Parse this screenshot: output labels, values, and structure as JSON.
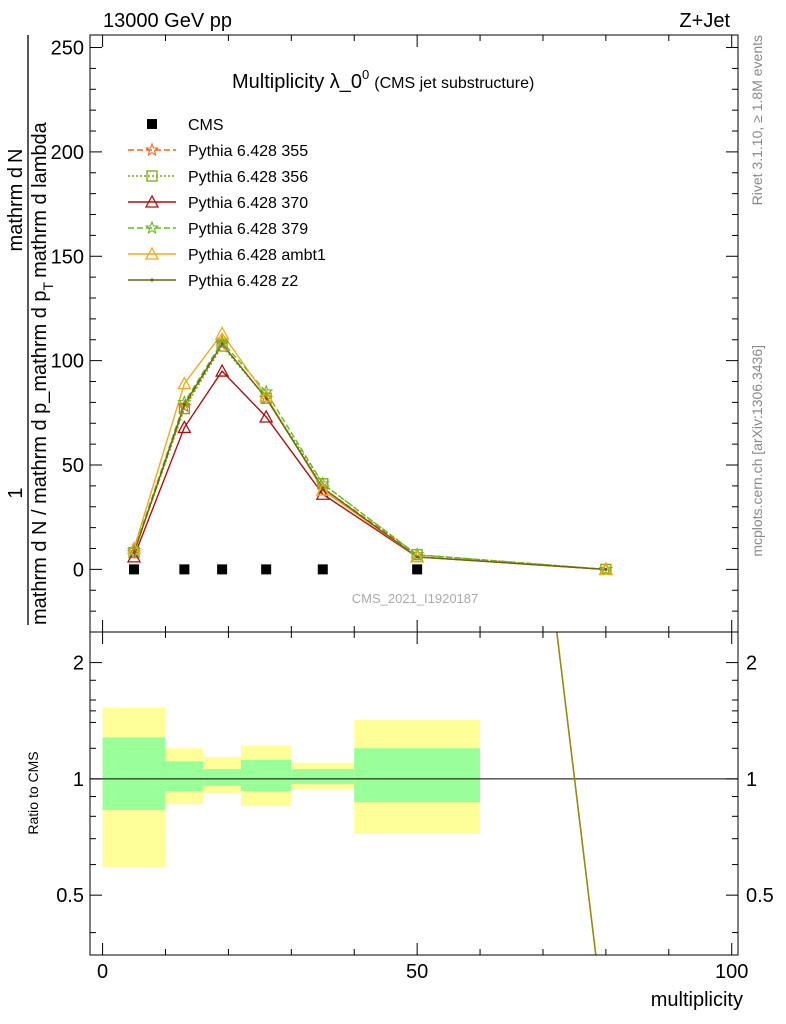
{
  "header": {
    "left": "13000 GeV pp",
    "right": "Z+Jet"
  },
  "side_labels": {
    "rivet": "Rivet 3.1.10, ≥ 1.8M events",
    "mcplots": "mcplots.cern.ch [arXiv:1306.3436]"
  },
  "chart_data": [
    {
      "type": "line",
      "title_main": "Multiplicity λ_0",
      "title_sup": "0",
      "title_sub": "(CMS jet substructure)",
      "watermark": "CMS_2021_I1920187",
      "ylabel_num": "1",
      "ylabel_den": "mathrm d N / mathrm d p_mathrm d p",
      "ylabel_den_sub": "T",
      "ylabel_den_tail": "mathrm d lambda",
      "ylabel_num_tail": "mathrm d",
      "ylabel_num_end": "N",
      "xlim": [
        -2,
        101
      ],
      "ylim": [
        -30,
        256
      ],
      "yticks": [
        0,
        50,
        100,
        150,
        200,
        250
      ],
      "legend_position": "top-left",
      "series": [
        {
          "name": "CMS",
          "color": "#000000",
          "marker": "square",
          "dash": "none",
          "x": [
            5,
            13,
            19,
            26,
            35,
            50
          ],
          "y": [
            0,
            0,
            0,
            0,
            0,
            0
          ]
        },
        {
          "name": "Pythia 6.428 355",
          "color": "#ee6622",
          "marker": "star",
          "dash": "6,3",
          "x": [
            5,
            13,
            19,
            26,
            35,
            50,
            80
          ],
          "y": [
            8,
            78,
            108,
            82,
            39,
            7,
            0
          ]
        },
        {
          "name": "Pythia 6.428 356",
          "color": "#77aa11",
          "marker": "square-open",
          "dash": "2,2",
          "x": [
            5,
            13,
            19,
            26,
            35,
            50,
            80
          ],
          "y": [
            8,
            77,
            107,
            82,
            41,
            7,
            0
          ]
        },
        {
          "name": "Pythia 6.428 370",
          "color": "#aa1111",
          "marker": "triangle-open",
          "dash": "none",
          "x": [
            5,
            13,
            19,
            26,
            35,
            50,
            80
          ],
          "y": [
            6,
            68,
            95,
            73,
            36,
            6,
            0
          ]
        },
        {
          "name": "Pythia 6.428 379",
          "color": "#66bb22",
          "marker": "star",
          "dash": "6,3",
          "x": [
            5,
            13,
            19,
            26,
            35,
            50,
            80
          ],
          "y": [
            9,
            80,
            109,
            85,
            41,
            7,
            0
          ]
        },
        {
          "name": "Pythia 6.428 ambt1",
          "color": "#eeaa22",
          "marker": "triangle-open",
          "dash": "none",
          "x": [
            5,
            13,
            19,
            26,
            35,
            50,
            80
          ],
          "y": [
            10,
            89,
            113,
            83,
            38,
            6,
            0
          ]
        },
        {
          "name": "Pythia 6.428 z2",
          "color": "#666611",
          "marker": "dot",
          "dash": "none",
          "x": [
            5,
            13,
            19,
            26,
            35,
            50,
            80
          ],
          "y": [
            8,
            79,
            108,
            82,
            39,
            6,
            0
          ]
        }
      ]
    },
    {
      "type": "area",
      "ylabel": "Ratio to CMS",
      "xlabel": "multiplicity",
      "xlim": [
        -2,
        101
      ],
      "ylim": [
        0.35,
        2.4
      ],
      "xticks": [
        0,
        50,
        100
      ],
      "yticks": [
        0.5,
        1,
        2
      ],
      "reference": 1,
      "bands": [
        {
          "x0": 0,
          "x1": 10,
          "inner": [
            0.83,
            1.28
          ],
          "outer": [
            0.59,
            1.53
          ]
        },
        {
          "x0": 10,
          "x1": 16,
          "inner": [
            0.93,
            1.11
          ],
          "outer": [
            0.86,
            1.2
          ]
        },
        {
          "x0": 16,
          "x1": 22,
          "inner": [
            0.96,
            1.06
          ],
          "outer": [
            0.92,
            1.14
          ]
        },
        {
          "x0": 22,
          "x1": 30,
          "inner": [
            0.93,
            1.12
          ],
          "outer": [
            0.85,
            1.22
          ]
        },
        {
          "x0": 30,
          "x1": 40,
          "inner": [
            0.97,
            1.06
          ],
          "outer": [
            0.94,
            1.1
          ]
        },
        {
          "x0": 40,
          "x1": 60,
          "inner": [
            0.87,
            1.2
          ],
          "outer": [
            0.72,
            1.42
          ]
        },
        {
          "x0": 60,
          "x1": 100,
          "inner": [
            1,
            1
          ],
          "outer": [
            1,
            1
          ]
        }
      ],
      "ratio_line": {
        "color": "#998811",
        "x": [
          72.2,
          78.4
        ],
        "y": [
          2.4,
          0.35
        ]
      }
    }
  ]
}
